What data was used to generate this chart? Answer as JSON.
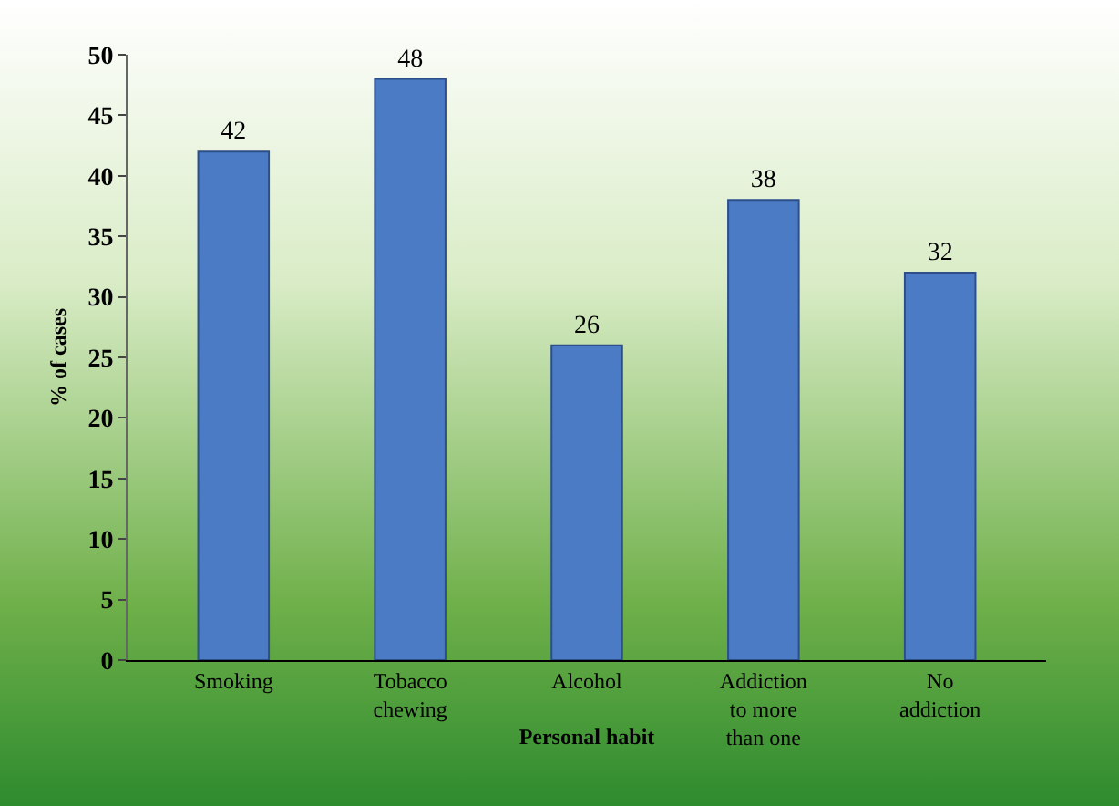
{
  "chart_data": {
    "type": "bar",
    "categories": [
      "Smoking",
      "Tobacco chewing",
      "Alcohol",
      "Addiction to more than one",
      "No addiction"
    ],
    "values": [
      42,
      48,
      26,
      38,
      32
    ],
    "color": "#4a7bc4",
    "ylim": [
      0,
      50
    ],
    "yticks": [
      0,
      5,
      10,
      15,
      20,
      25,
      30,
      35,
      40,
      45,
      50
    ],
    "xlabel": "Personal habit",
    "ylabel": "% of cases",
    "data_labels": true,
    "grid": false,
    "legend": false
  }
}
